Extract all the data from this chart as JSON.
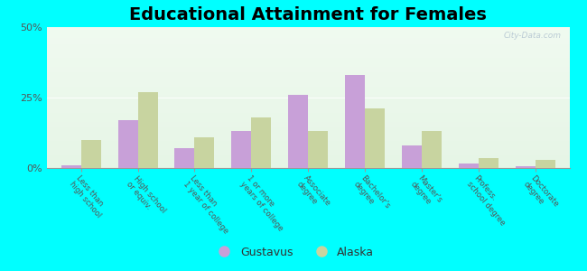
{
  "title": "Educational Attainment for Females",
  "categories": [
    "Less than\nhigh school",
    "High school\nor equiv.",
    "Less than\n1 year of college",
    "1 or more\nyears of college",
    "Associate\ndegree",
    "Bachelor's\ndegree",
    "Master's\ndegree",
    "Profess.\nschool degree",
    "Doctorate\ndegree"
  ],
  "gustavus": [
    1.0,
    17.0,
    7.0,
    13.0,
    26.0,
    33.0,
    8.0,
    1.5,
    0.5
  ],
  "alaska": [
    10.0,
    27.0,
    11.0,
    18.0,
    13.0,
    21.0,
    13.0,
    3.5,
    3.0
  ],
  "gustavus_color": "#c8a0d8",
  "alaska_color": "#c8d4a0",
  "background_color": "#00ffff",
  "ylim": [
    0,
    50
  ],
  "yticks": [
    0,
    25,
    50
  ],
  "ytick_labels": [
    "0%",
    "25%",
    "50%"
  ],
  "bar_width": 0.35,
  "title_fontsize": 14,
  "watermark": "City-Data.com"
}
